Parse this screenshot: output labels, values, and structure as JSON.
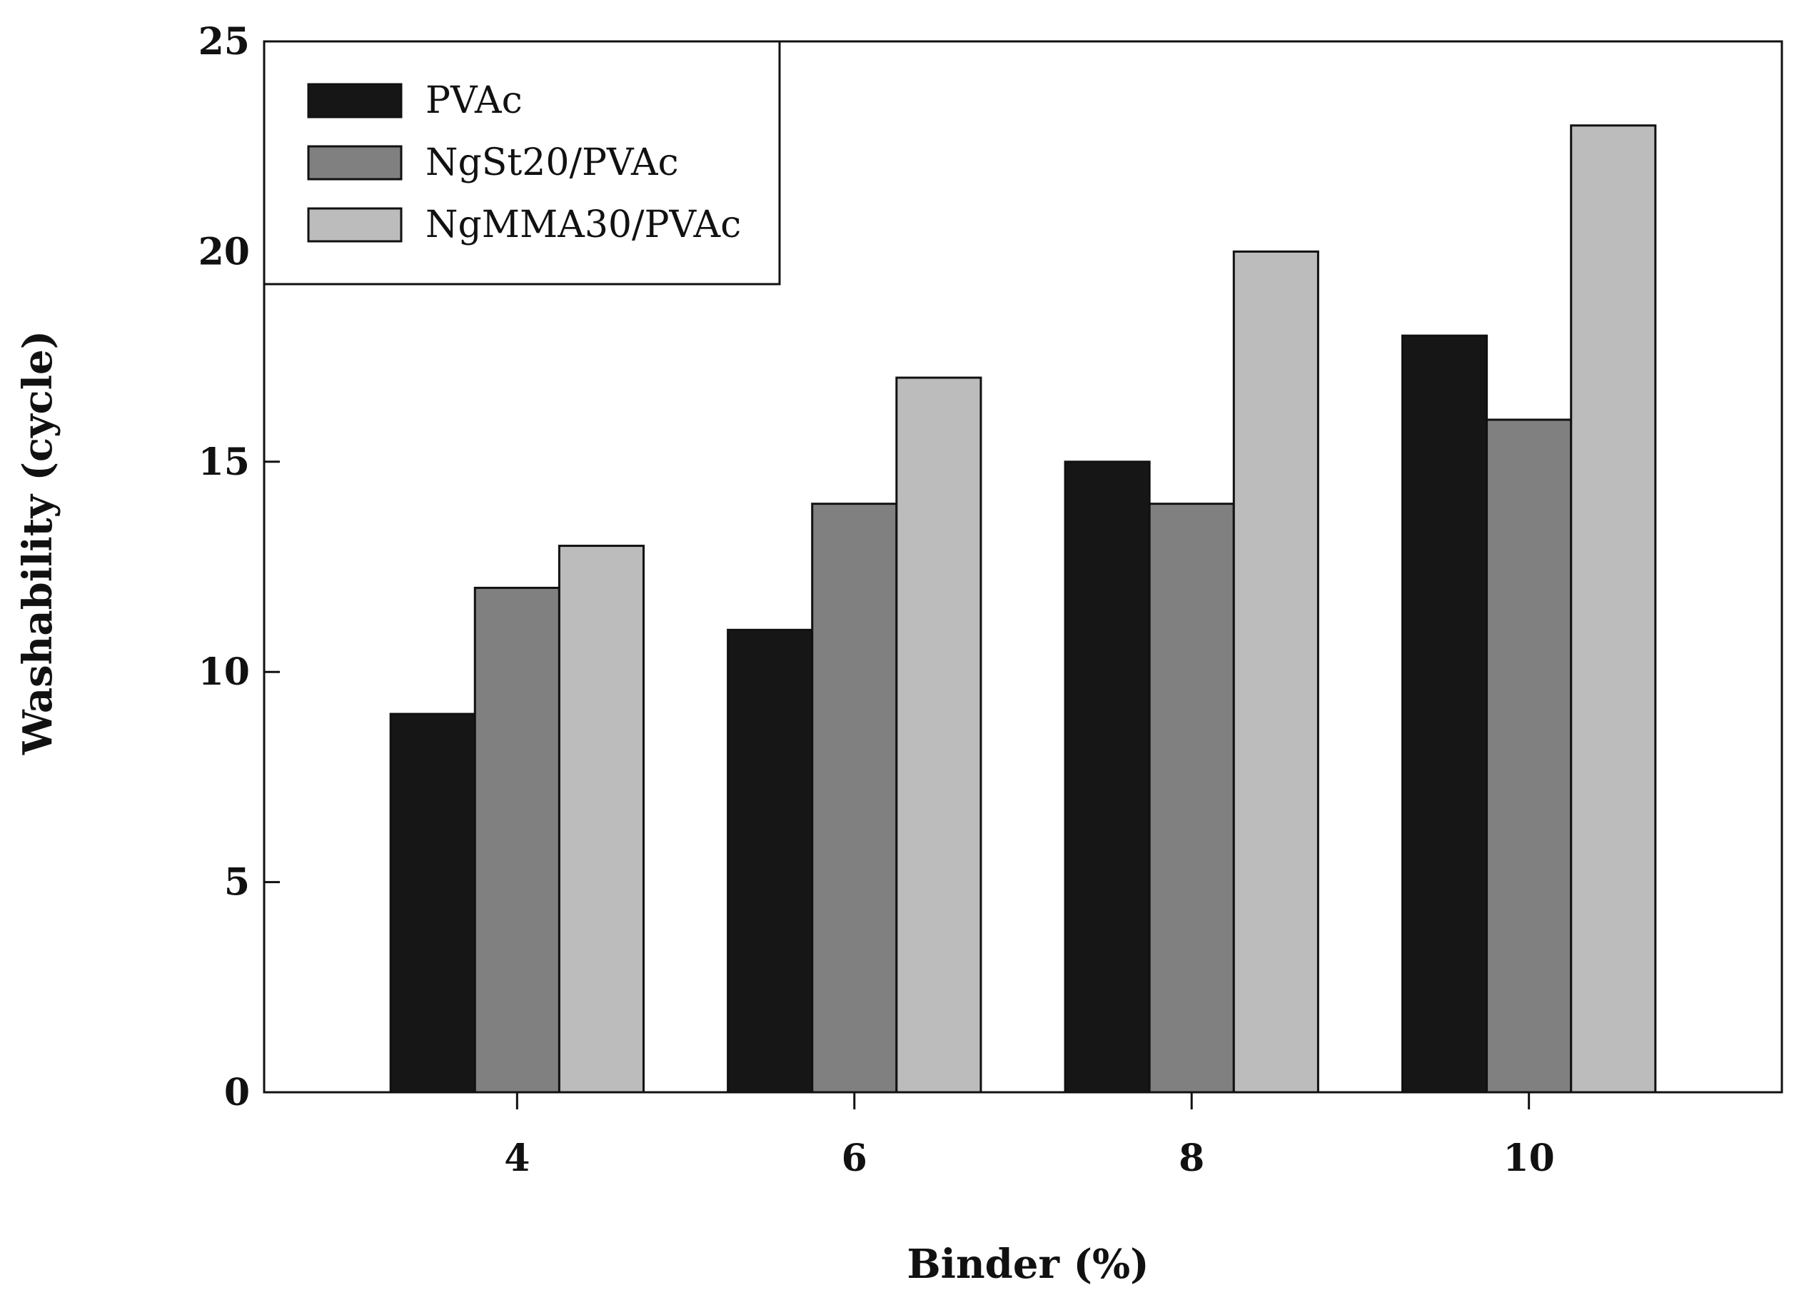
{
  "chart_data": {
    "type": "bar",
    "xlabel": "Binder (%)",
    "ylabel": "Washability (cycle)",
    "categories": [
      "4",
      "6",
      "8",
      "10"
    ],
    "series": [
      {
        "name": "PVAc",
        "values": [
          9,
          11,
          15,
          18
        ],
        "color": "#161616"
      },
      {
        "name": "NgSt20/PVAc",
        "values": [
          12,
          14,
          14,
          16
        ],
        "color": "#808080"
      },
      {
        "name": "NgMMA30/PVAc",
        "values": [
          13,
          17,
          20,
          23
        ],
        "color": "#bcbcbc"
      }
    ],
    "ylim": [
      0,
      25
    ],
    "yticks": [
      "0",
      "5",
      "10",
      "15",
      "20",
      "25"
    ],
    "legend_position": "top-left",
    "grid": false
  }
}
